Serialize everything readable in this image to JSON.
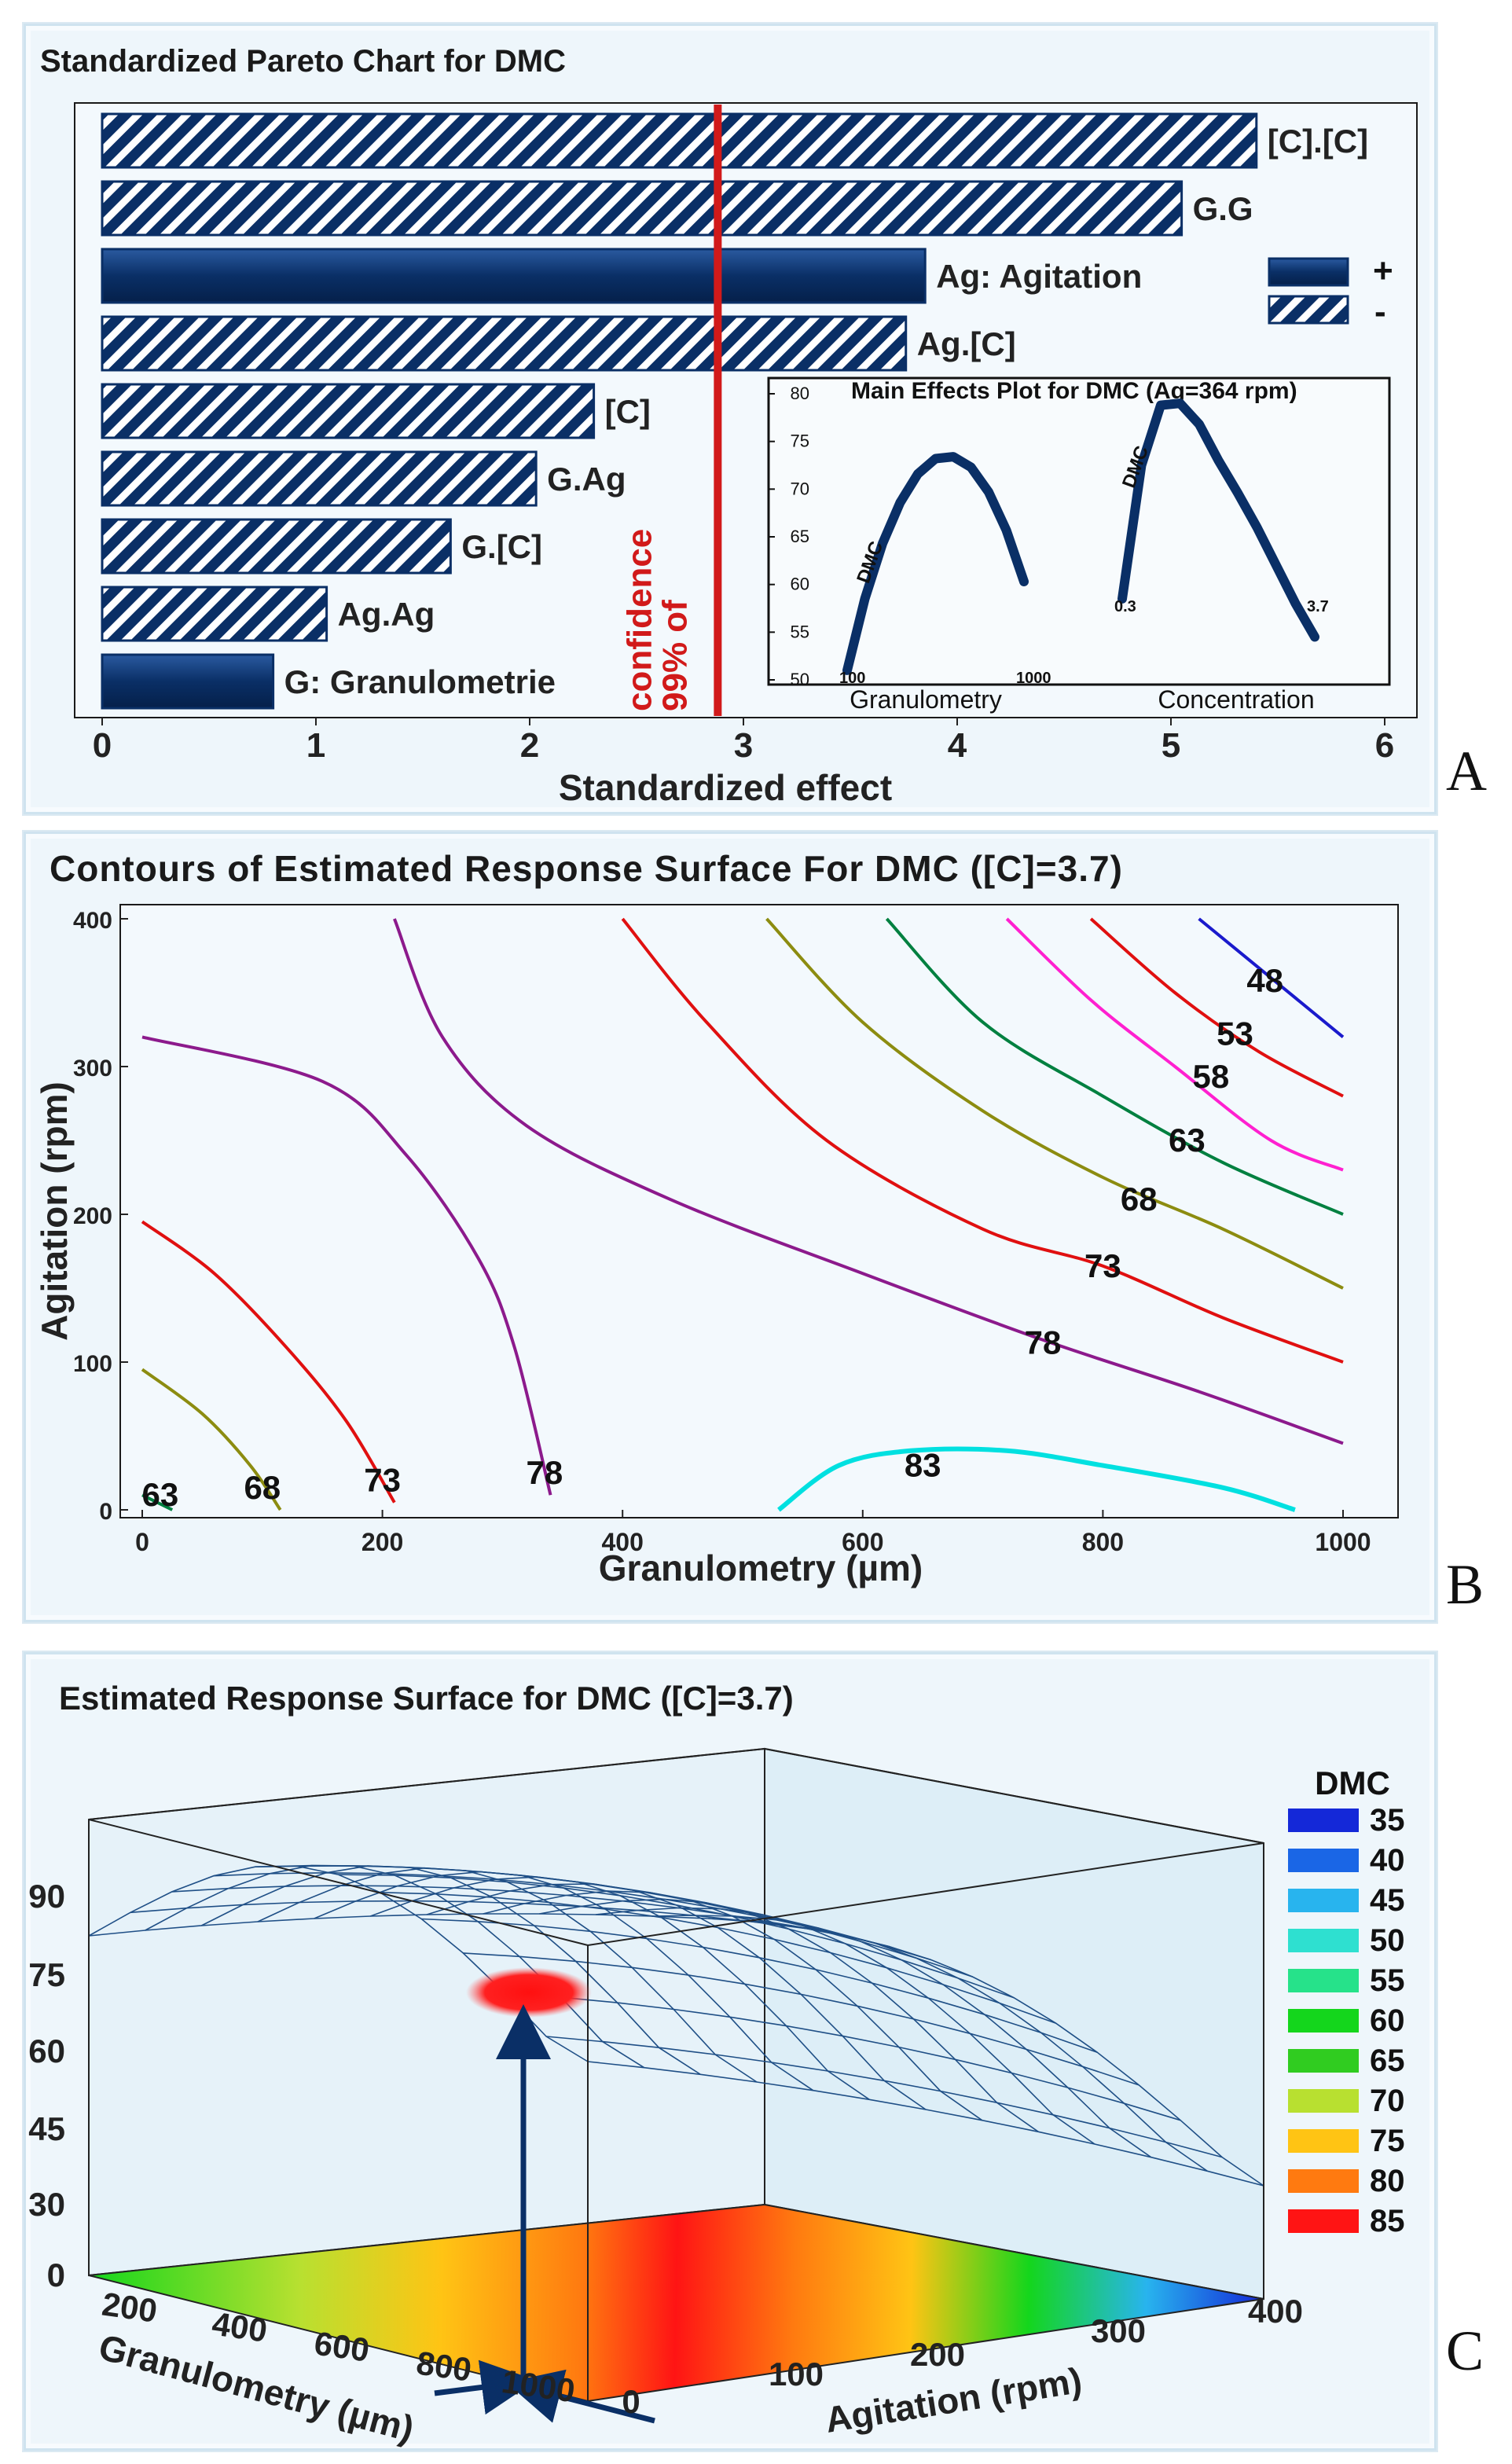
{
  "panel_labels": [
    "A",
    "B",
    "C"
  ],
  "chart_data": [
    {
      "type": "bar",
      "orientation": "horizontal",
      "title": "Standardized Pareto Chart for DMC",
      "xlabel": "Standardized effect",
      "xlim": [
        0,
        6
      ],
      "xticks": [
        0,
        1,
        2,
        3,
        4,
        5,
        6
      ],
      "categories": [
        "[C].[C]",
        "G.G",
        "Ag: Agitation",
        "Ag.[C]",
        "[C]",
        "G.Ag",
        "G.[C]",
        "Ag.Ag",
        "G: Granulometrie"
      ],
      "values": [
        5.4,
        5.05,
        3.85,
        3.76,
        2.3,
        2.03,
        1.63,
        1.05,
        0.8
      ],
      "signs": [
        "-",
        "-",
        "+",
        "-",
        "-",
        "-",
        "-",
        "-",
        "+"
      ],
      "legend": [
        {
          "label": "+",
          "style": "solid"
        },
        {
          "label": "-",
          "style": "hatched"
        }
      ],
      "reference_line": {
        "value": 2.88,
        "label": "99% of confidence",
        "color": "#d11a1a"
      },
      "colors": {
        "bar": "#0a2f66",
        "hatch": "#ffffff",
        "line": "#d11a1a"
      },
      "inset": {
        "type": "line",
        "title": "Main Effects Plot for DMC (Ag=364 rpm)",
        "ylim": [
          50,
          80
        ],
        "yticks": [
          50,
          55,
          60,
          65,
          70,
          75,
          80
        ],
        "panels": [
          {
            "factor": "Granulometry",
            "label": "DMC",
            "low": "100",
            "high": "1000",
            "x": [
              0,
              0.1,
              0.2,
              0.3,
              0.4,
              0.5,
              0.6,
              0.7,
              0.8,
              0.9,
              1.0
            ],
            "y": [
              51,
              58.5,
              64.3,
              68.6,
              71.6,
              73.2,
              73.4,
              72.3,
              69.7,
              65.7,
              60.3
            ]
          },
          {
            "factor": "Concentration",
            "label": "DMC",
            "low": "0.3",
            "high": "3.7",
            "x": [
              0,
              0.1,
              0.2,
              0.3,
              0.4,
              0.5,
              0.6,
              0.7,
              0.8,
              0.9,
              1.0
            ],
            "y": [
              58.5,
              72.5,
              78.8,
              79.0,
              76.8,
              73.0,
              69.6,
              66.0,
              62.0,
              58.0,
              54.5
            ]
          }
        ]
      }
    },
    {
      "type": "contour",
      "title": "Contours of Estimated Response Surface For DMC ([C]=3.7)",
      "xlabel": "Granulometry  (µm)",
      "ylabel": "Agitation  (rpm)",
      "xlim": [
        0,
        1000
      ],
      "ylim": [
        0,
        400
      ],
      "xticks": [
        0,
        200,
        400,
        600,
        800,
        1000
      ],
      "yticks": [
        0,
        100,
        200,
        300,
        400
      ],
      "contours": [
        {
          "level": "48",
          "color": "#1a1acc",
          "points": [
            [
              880,
              400
            ],
            [
              940,
              360
            ],
            [
              1000,
              320
            ]
          ],
          "label_at": [
            935,
            358
          ]
        },
        {
          "level": "53",
          "color": "#e01010",
          "points": [
            [
              790,
              400
            ],
            [
              860,
              350
            ],
            [
              930,
              310
            ],
            [
              1000,
              280
            ]
          ],
          "label_at": [
            910,
            322
          ]
        },
        {
          "level": "58",
          "color": "#ff20d0",
          "points": [
            [
              720,
              400
            ],
            [
              790,
              345
            ],
            [
              860,
              300
            ],
            [
              940,
              250
            ],
            [
              1000,
              230
            ]
          ],
          "label_at": [
            890,
            293
          ]
        },
        {
          "level": "63",
          "color": "#008040",
          "points": [
            [
              620,
              400
            ],
            [
              700,
              330
            ],
            [
              800,
              280
            ],
            [
              900,
              235
            ],
            [
              1000,
              200
            ]
          ],
          "label_at": [
            870,
            250
          ]
        },
        {
          "level": "68",
          "color": "#8c8c10",
          "points": [
            [
              520,
              400
            ],
            [
              600,
              330
            ],
            [
              700,
              270
            ],
            [
              800,
              225
            ],
            [
              900,
              190
            ],
            [
              1000,
              150
            ]
          ],
          "label_at": [
            830,
            210
          ]
        },
        {
          "level": "73",
          "color": "#e01010",
          "points": [
            [
              400,
              400
            ],
            [
              470,
              330
            ],
            [
              570,
              250
            ],
            [
              700,
              190
            ],
            [
              800,
              165
            ],
            [
              900,
              130
            ],
            [
              1000,
              100
            ]
          ],
          "label_at": [
            800,
            165
          ]
        },
        {
          "level": "78",
          "color": "#8c1a8c",
          "points": [
            [
              0,
              320
            ],
            [
              150,
              290
            ],
            [
              220,
              240
            ],
            [
              280,
              170
            ],
            [
              310,
              110
            ],
            [
              340,
              10
            ]
          ],
          "label_at": [
            335,
            25
          ]
        },
        {
          "level": "78",
          "color": "#8c1a8c",
          "points": [
            [
              210,
              400
            ],
            [
              250,
              320
            ],
            [
              320,
              260
            ],
            [
              440,
              210
            ],
            [
              600,
              160
            ],
            [
              750,
              115
            ],
            [
              880,
              80
            ],
            [
              1000,
              45
            ]
          ],
          "label_at": [
            750,
            113
          ]
        },
        {
          "level": "73",
          "color": "#e01010",
          "points": [
            [
              0,
              195
            ],
            [
              60,
              160
            ],
            [
              120,
              110
            ],
            [
              170,
              60
            ],
            [
              210,
              5
            ]
          ],
          "label_at": [
            200,
            20
          ]
        },
        {
          "level": "68",
          "color": "#8c8c10",
          "points": [
            [
              0,
              95
            ],
            [
              50,
              65
            ],
            [
              90,
              30
            ],
            [
              115,
              0
            ]
          ],
          "label_at": [
            100,
            15
          ]
        },
        {
          "level": "63",
          "color": "#008040",
          "points": [
            [
              0,
              10
            ],
            [
              25,
              0
            ]
          ],
          "label_at": [
            15,
            10
          ]
        },
        {
          "level": "83",
          "color": "#00e0e0",
          "points": [
            [
              530,
              0
            ],
            [
              580,
              30
            ],
            [
              640,
              40
            ],
            [
              720,
              40
            ],
            [
              800,
              30
            ],
            [
              900,
              15
            ],
            [
              960,
              0
            ]
          ],
          "label_at": [
            650,
            30
          ]
        }
      ]
    },
    {
      "type": "surface3d",
      "title": "Estimated Response Surface for DMC  ([C]=3.7)",
      "xlabel": "Granulometry (µm)",
      "ylabel": "Agitation (rpm)",
      "zlabel": "DMC",
      "x_ticks": [
        "200",
        "400",
        "600",
        "800",
        "1000"
      ],
      "y_ticks": [
        "0",
        "100",
        "200",
        "300",
        "400"
      ],
      "z_ticks": [
        "0",
        "30",
        "45",
        "60",
        "75",
        "90"
      ],
      "legend_title": "DMC",
      "legend": [
        {
          "value": "35",
          "color": "#1428d8"
        },
        {
          "value": "40",
          "color": "#1a66e6"
        },
        {
          "value": "45",
          "color": "#28b4ee"
        },
        {
          "value": "50",
          "color": "#2ee0d0"
        },
        {
          "value": "55",
          "color": "#26e28a"
        },
        {
          "value": "60",
          "color": "#14d61c"
        },
        {
          "value": "65",
          "color": "#30cc20"
        },
        {
          "value": "70",
          "color": "#b8e030"
        },
        {
          "value": "75",
          "color": "#ffc414"
        },
        {
          "value": "80",
          "color": "#ff7a10"
        },
        {
          "value": "85",
          "color": "#ff1414"
        }
      ]
    }
  ]
}
